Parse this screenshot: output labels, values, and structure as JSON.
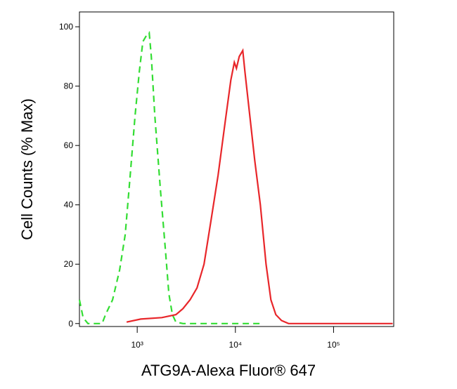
{
  "chart_data": {
    "type": "line",
    "xlabel": "ATG9A-Alexa Fluor® 647",
    "ylabel": "Cell Counts (% Max)",
    "xscale": "log",
    "xlim": [
      258,
      410000
    ],
    "ylim": [
      -1,
      105
    ],
    "xticks": [
      {
        "value": 1000,
        "label": "10³"
      },
      {
        "value": 10000,
        "label": "10⁴"
      },
      {
        "value": 100000,
        "label": "10⁵"
      }
    ],
    "yticks": [
      0,
      20,
      40,
      60,
      80,
      100
    ],
    "series": [
      {
        "color": "#33dd33",
        "linestyle": "dashed",
        "x": [
          258,
          281,
          315,
          439,
          476,
          561,
          662,
          755,
          848,
          951,
          1051,
          1141,
          1240,
          1324,
          1391,
          1510,
          1725,
          1936,
          2102,
          2281,
          2478,
          2924,
          18000
        ],
        "values": [
          8,
          2,
          0,
          0,
          3,
          8,
          18,
          30,
          50,
          70,
          85,
          95,
          97,
          98,
          90,
          70,
          45,
          25,
          10,
          3,
          0.5,
          0,
          0
        ]
      },
      {
        "color": "#e8262a",
        "linestyle": "solid",
        "x": [
          780,
          1086,
          1781,
          2478,
          2924,
          3451,
          4064,
          4797,
          5662,
          6668,
          7870,
          8980,
          9750,
          10250,
          10950,
          11890,
          12500,
          14030,
          15740,
          17950,
          20510,
          23010,
          25820,
          29510,
          34770,
          400000
        ],
        "values": [
          0.5,
          1.5,
          2,
          3,
          5,
          8,
          12,
          20,
          35,
          50,
          68,
          82,
          88,
          86,
          90,
          92,
          85,
          70,
          55,
          40,
          20,
          8,
          3,
          1,
          0,
          0
        ]
      }
    ]
  }
}
